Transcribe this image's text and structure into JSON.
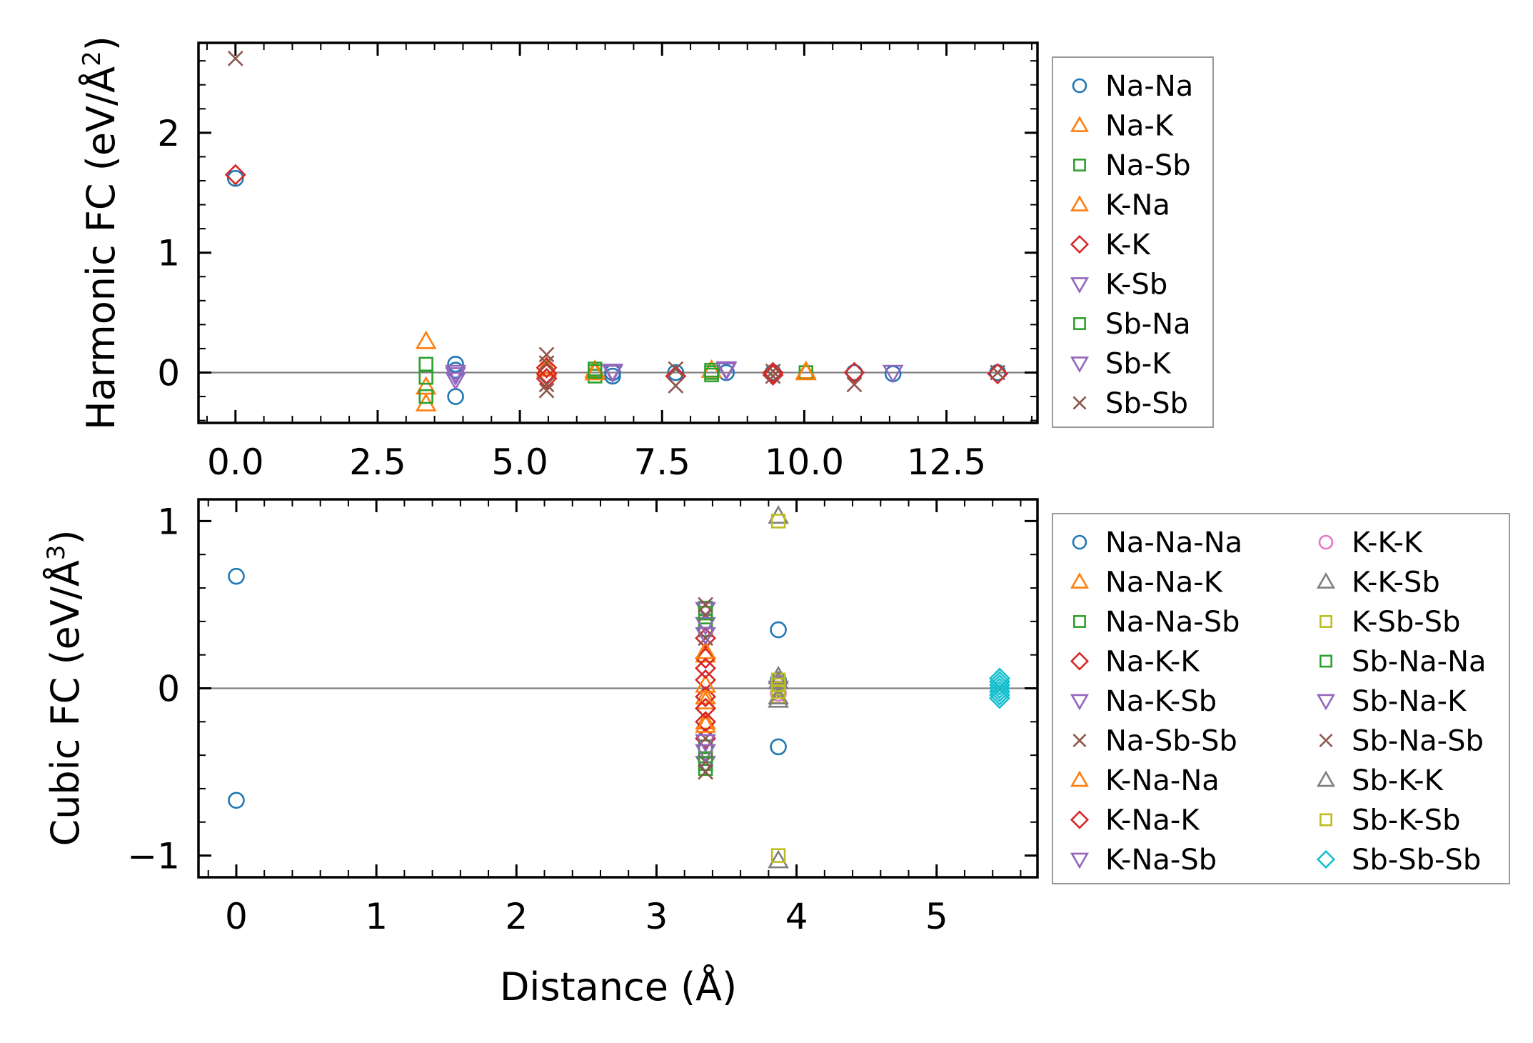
{
  "chart_data": [
    {
      "type": "scatter",
      "id": "harmonic",
      "ylabel": "Harmonic FC (eV/Å²)",
      "ylabel_main": "Harmonic FC (eV/Å",
      "ylabel_sup": "2",
      "ylabel_end": ")",
      "xlabel": "",
      "xlim": [
        -0.65,
        14.1
      ],
      "ylim": [
        -0.42,
        2.75
      ],
      "xticks": [
        0.0,
        2.5,
        5.0,
        7.5,
        10.0,
        12.5
      ],
      "xtick_labels": [
        "0.0",
        "2.5",
        "5.0",
        "7.5",
        "10.0",
        "12.5"
      ],
      "yticks": [
        0,
        1,
        2
      ],
      "ytick_labels": [
        "0",
        "1",
        "2"
      ],
      "hline": 0,
      "legend_location": "outside-right",
      "legend_columns": 1,
      "series": [
        {
          "name": "Na-Na",
          "marker": "circle",
          "color": "#1f77b4",
          "points": [
            [
              0.0,
              1.62
            ],
            [
              3.87,
              0.07
            ],
            [
              3.87,
              0.02
            ],
            [
              3.87,
              -0.2
            ],
            [
              6.63,
              -0.03
            ],
            [
              6.63,
              0.0
            ],
            [
              7.74,
              0.0
            ],
            [
              8.63,
              0.0
            ],
            [
              9.45,
              0.0
            ],
            [
              10.88,
              0.0
            ],
            [
              11.56,
              -0.01
            ],
            [
              13.4,
              0.0
            ]
          ]
        },
        {
          "name": "Na-K",
          "marker": "triangle-up",
          "color": "#ff7f0e",
          "points": [
            [
              3.35,
              0.26
            ],
            [
              3.35,
              -0.12
            ],
            [
              3.35,
              -0.26
            ],
            [
              5.47,
              0.03
            ],
            [
              6.32,
              0.02
            ],
            [
              8.37,
              0.02
            ],
            [
              10.03,
              0.01
            ]
          ]
        },
        {
          "name": "Na-Sb",
          "marker": "square",
          "color": "#2ca02c",
          "points": [
            [
              3.35,
              0.07
            ],
            [
              3.35,
              -0.04
            ],
            [
              3.35,
              -0.2
            ],
            [
              6.32,
              0.03
            ],
            [
              6.32,
              -0.03
            ],
            [
              8.37,
              0.02
            ],
            [
              8.37,
              -0.02
            ],
            [
              10.03,
              0.0
            ]
          ]
        },
        {
          "name": "K-Na",
          "marker": "triangle-up",
          "color": "#ff7f0e",
          "points": [
            [
              5.47,
              0.05
            ],
            [
              6.32,
              0.0
            ],
            [
              10.03,
              0.0
            ]
          ]
        },
        {
          "name": "K-K",
          "marker": "diamond",
          "color": "#d62728",
          "points": [
            [
              0.0,
              1.65
            ],
            [
              5.47,
              0.04
            ],
            [
              5.47,
              -0.01
            ],
            [
              5.47,
              -0.05
            ],
            [
              7.74,
              -0.03
            ],
            [
              9.45,
              0.0
            ],
            [
              9.45,
              -0.02
            ],
            [
              10.88,
              0.0
            ],
            [
              13.4,
              -0.01
            ]
          ]
        },
        {
          "name": "K-Sb",
          "marker": "triangle-down",
          "color": "#9467bd",
          "points": [
            [
              3.87,
              -0.02
            ],
            [
              3.87,
              -0.06
            ],
            [
              6.63,
              0.01
            ],
            [
              8.63,
              0.03
            ],
            [
              11.56,
              0.0
            ]
          ]
        },
        {
          "name": "Sb-Na",
          "marker": "square",
          "color": "#2ca02c",
          "points": [
            [
              6.32,
              0.01
            ],
            [
              8.37,
              0.0
            ]
          ]
        },
        {
          "name": "Sb-K",
          "marker": "triangle-down",
          "color": "#9467bd",
          "points": [
            [
              3.87,
              0.0
            ],
            [
              6.63,
              0.0
            ],
            [
              8.63,
              0.02
            ]
          ]
        },
        {
          "name": "Sb-Sb",
          "marker": "x",
          "color": "#8c564b",
          "points": [
            [
              0.0,
              2.62
            ],
            [
              5.47,
              0.15
            ],
            [
              5.47,
              0.08
            ],
            [
              5.47,
              -0.1
            ],
            [
              5.47,
              -0.15
            ],
            [
              7.74,
              0.03
            ],
            [
              7.74,
              -0.11
            ],
            [
              9.45,
              0.01
            ],
            [
              9.45,
              -0.03
            ],
            [
              10.88,
              -0.1
            ],
            [
              13.4,
              0.0
            ]
          ]
        }
      ]
    },
    {
      "type": "scatter",
      "id": "cubic",
      "ylabel": "Cubic FC (eV/Å³)",
      "ylabel_main": "Cubic FC (eV/Å",
      "ylabel_sup": "3",
      "ylabel_end": ")",
      "xlabel": "Distance (Å)",
      "xlim": [
        -0.27,
        5.72
      ],
      "ylim": [
        -1.13,
        1.13
      ],
      "xticks": [
        0,
        1,
        2,
        3,
        4,
        5
      ],
      "xtick_labels": [
        "0",
        "1",
        "2",
        "3",
        "4",
        "5"
      ],
      "yticks": [
        -1,
        0,
        1
      ],
      "ytick_labels": [
        "−1",
        "0",
        "1"
      ],
      "hline": 0,
      "legend_location": "outside-right",
      "legend_columns": 2,
      "series": [
        {
          "name": "Na-Na-Na",
          "marker": "circle",
          "color": "#1f77b4",
          "points": [
            [
              0.0,
              0.67
            ],
            [
              0.0,
              -0.67
            ],
            [
              3.87,
              0.35
            ],
            [
              3.87,
              0.05
            ],
            [
              3.87,
              0.02
            ],
            [
              3.87,
              -0.35
            ]
          ]
        },
        {
          "name": "Na-Na-K",
          "marker": "triangle-up",
          "color": "#ff7f0e",
          "points": [
            [
              3.35,
              0.2
            ],
            [
              3.35,
              -0.05
            ],
            [
              3.35,
              -0.2
            ]
          ]
        },
        {
          "name": "Na-Na-Sb",
          "marker": "square",
          "color": "#2ca02c",
          "points": [
            [
              3.35,
              0.48
            ],
            [
              3.35,
              0.4
            ],
            [
              3.35,
              0.35
            ],
            [
              3.35,
              -0.35
            ],
            [
              3.35,
              -0.42
            ],
            [
              3.35,
              -0.48
            ]
          ]
        },
        {
          "name": "Na-K-K",
          "marker": "diamond",
          "color": "#d62728",
          "points": [
            [
              3.35,
              0.3
            ],
            [
              3.35,
              0.18
            ],
            [
              3.35,
              0.05
            ],
            [
              3.35,
              -0.05
            ],
            [
              3.35,
              -0.2
            ],
            [
              3.35,
              -0.3
            ]
          ]
        },
        {
          "name": "Na-K-Sb",
          "marker": "triangle-down",
          "color": "#9467bd",
          "points": [
            [
              3.35,
              0.47
            ],
            [
              3.35,
              -0.45
            ],
            [
              3.87,
              0.0
            ]
          ]
        },
        {
          "name": "Na-Sb-Sb",
          "marker": "x",
          "color": "#8c564b",
          "points": [
            [
              3.35,
              0.44
            ],
            [
              3.35,
              0.3
            ],
            [
              3.35,
              -0.3
            ],
            [
              3.35,
              -0.44
            ],
            [
              3.35,
              -0.5
            ]
          ]
        },
        {
          "name": "K-Na-Na",
          "marker": "triangle-up",
          "color": "#ff7f0e",
          "points": [
            [
              3.35,
              0.22
            ],
            [
              3.35,
              0.02
            ],
            [
              3.35,
              -0.08
            ],
            [
              3.35,
              -0.22
            ]
          ]
        },
        {
          "name": "K-Na-K",
          "marker": "diamond",
          "color": "#d62728",
          "points": [
            [
              3.35,
              0.12
            ],
            [
              3.35,
              -0.12
            ]
          ]
        },
        {
          "name": "K-Na-Sb",
          "marker": "triangle-down",
          "color": "#9467bd",
          "points": [
            [
              3.35,
              0.38
            ],
            [
              3.35,
              -0.38
            ]
          ]
        },
        {
          "name": "K-K-K",
          "marker": "circle",
          "color": "#e377c2",
          "points": [
            [
              3.87,
              0.03
            ],
            [
              3.87,
              -0.03
            ]
          ]
        },
        {
          "name": "K-K-Sb",
          "marker": "triangle-up",
          "color": "#7f7f7f",
          "points": [
            [
              3.87,
              1.03
            ],
            [
              3.87,
              -1.03
            ],
            [
              3.87,
              -0.07
            ],
            [
              3.87,
              0.07
            ]
          ]
        },
        {
          "name": "K-Sb-Sb",
          "marker": "square",
          "color": "#bcbd22",
          "points": [
            [
              3.87,
              1.0
            ],
            [
              3.87,
              -1.0
            ],
            [
              3.87,
              0.05
            ],
            [
              3.87,
              0.0
            ],
            [
              3.87,
              -0.05
            ]
          ]
        },
        {
          "name": "Sb-Na-Na",
          "marker": "square",
          "color": "#2ca02c",
          "points": [
            [
              3.35,
              0.45
            ],
            [
              3.35,
              -0.45
            ]
          ]
        },
        {
          "name": "Sb-Na-K",
          "marker": "triangle-down",
          "color": "#9467bd",
          "points": [
            [
              3.35,
              0.32
            ],
            [
              3.35,
              -0.32
            ]
          ]
        },
        {
          "name": "Sb-Na-Sb",
          "marker": "x",
          "color": "#8c564b",
          "points": [
            [
              3.35,
              0.5
            ],
            [
              3.35,
              -0.5
            ]
          ]
        },
        {
          "name": "Sb-K-K",
          "marker": "triangle-up",
          "color": "#7f7f7f",
          "points": [
            [
              3.87,
              -0.05
            ],
            [
              3.87,
              0.04
            ]
          ]
        },
        {
          "name": "Sb-K-Sb",
          "marker": "square",
          "color": "#bcbd22",
          "points": [
            [
              3.87,
              0.02
            ],
            [
              3.87,
              -0.02
            ]
          ]
        },
        {
          "name": "Sb-Sb-Sb",
          "marker": "diamond",
          "color": "#17becf",
          "points": [
            [
              5.45,
              0.06
            ],
            [
              5.45,
              0.04
            ],
            [
              5.45,
              0.02
            ],
            [
              5.45,
              0.0
            ],
            [
              5.45,
              -0.02
            ],
            [
              5.45,
              -0.04
            ],
            [
              5.45,
              -0.06
            ]
          ]
        }
      ]
    }
  ]
}
